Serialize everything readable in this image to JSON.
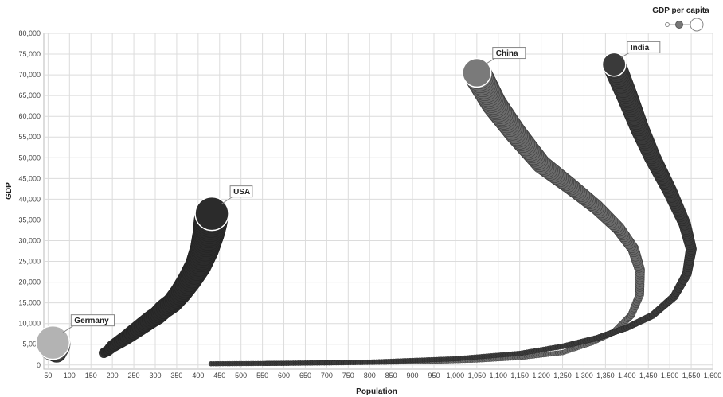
{
  "chart_data": {
    "type": "scatter",
    "subtype": "bubble-trajectory",
    "xlabel": "Population",
    "ylabel": "GDP",
    "xlim": [
      40,
      1600
    ],
    "ylim": [
      -1000,
      80000
    ],
    "x_ticks": [
      50,
      100,
      150,
      200,
      250,
      300,
      350,
      400,
      450,
      500,
      550,
      600,
      650,
      700,
      750,
      800,
      850,
      900,
      950,
      1000,
      1050,
      1100,
      1150,
      1200,
      1250,
      1300,
      1350,
      1400,
      1450,
      1500,
      1550,
      1600
    ],
    "y_ticks": [
      0,
      5000,
      10000,
      15000,
      20000,
      25000,
      30000,
      35000,
      40000,
      45000,
      50000,
      55000,
      60000,
      65000,
      70000,
      75000,
      80000
    ],
    "grid": true,
    "legend": {
      "title": "GDP per capita",
      "placement": "top-right"
    },
    "size_encoding": "GDP per capita",
    "series": [
      {
        "name": "Germany",
        "color": "#b3b3b3",
        "trail_color": "#666666",
        "points": [
          [
            70,
            3000
          ],
          [
            68,
            3500
          ],
          [
            66,
            4200
          ],
          [
            63,
            5000
          ],
          [
            61,
            5400
          ]
        ]
      },
      {
        "name": "USA",
        "color": "#2b2b2b",
        "trail_color": "#2b2b2b",
        "points": [
          [
            180,
            2900
          ],
          [
            190,
            3500
          ],
          [
            200,
            4500
          ],
          [
            215,
            5500
          ],
          [
            230,
            6500
          ],
          [
            250,
            8000
          ],
          [
            270,
            9500
          ],
          [
            290,
            11000
          ],
          [
            305,
            12000
          ],
          [
            320,
            13500
          ],
          [
            340,
            15000
          ],
          [
            360,
            17500
          ],
          [
            380,
            20500
          ],
          [
            400,
            24000
          ],
          [
            415,
            28000
          ],
          [
            425,
            32000
          ],
          [
            432,
            36500
          ]
        ]
      },
      {
        "name": "China",
        "color": "#7a7a7a",
        "trail_color": "#6a6a6a",
        "points": [
          [
            560,
            400
          ],
          [
            700,
            500
          ],
          [
            850,
            700
          ],
          [
            950,
            900
          ],
          [
            1050,
            1200
          ],
          [
            1150,
            1800
          ],
          [
            1250,
            3000
          ],
          [
            1320,
            5500
          ],
          [
            1370,
            8000
          ],
          [
            1410,
            12000
          ],
          [
            1430,
            17000
          ],
          [
            1430,
            23000
          ],
          [
            1415,
            28000
          ],
          [
            1380,
            33000
          ],
          [
            1330,
            38000
          ],
          [
            1270,
            43000
          ],
          [
            1200,
            48500
          ],
          [
            1140,
            56000
          ],
          [
            1090,
            63000
          ],
          [
            1050,
            70500
          ]
        ]
      },
      {
        "name": "India",
        "color": "#3a3a3a",
        "trail_color": "#3a3a3a",
        "points": [
          [
            430,
            300
          ],
          [
            600,
            400
          ],
          [
            800,
            700
          ],
          [
            1000,
            1500
          ],
          [
            1150,
            2800
          ],
          [
            1250,
            4500
          ],
          [
            1330,
            6500
          ],
          [
            1400,
            9000
          ],
          [
            1460,
            12000
          ],
          [
            1510,
            16500
          ],
          [
            1540,
            22000
          ],
          [
            1550,
            28000
          ],
          [
            1535,
            34000
          ],
          [
            1500,
            42000
          ],
          [
            1460,
            50000
          ],
          [
            1430,
            57000
          ],
          [
            1400,
            65000
          ],
          [
            1370,
            72500
          ]
        ]
      }
    ],
    "callouts": [
      {
        "label": "Germany",
        "series": "Germany"
      },
      {
        "label": "USA",
        "series": "USA"
      },
      {
        "label": "China",
        "series": "China"
      },
      {
        "label": "India",
        "series": "India"
      }
    ]
  }
}
